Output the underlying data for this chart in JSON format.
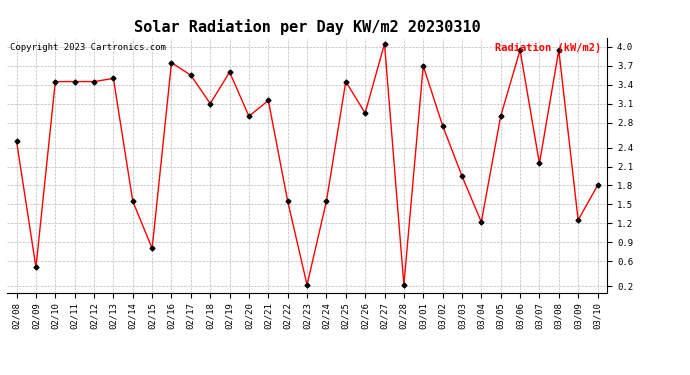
{
  "title": "Solar Radiation per Day KW/m2 20230310",
  "copyright": "Copyright 2023 Cartronics.com",
  "legend_label": "Radiation (kW/m2)",
  "dates": [
    "02/08",
    "02/09",
    "02/10",
    "02/11",
    "02/12",
    "02/13",
    "02/14",
    "02/15",
    "02/16",
    "02/17",
    "02/18",
    "02/19",
    "02/20",
    "02/21",
    "02/22",
    "02/23",
    "02/24",
    "02/25",
    "02/26",
    "02/27",
    "02/28",
    "03/01",
    "03/02",
    "03/03",
    "03/04",
    "03/05",
    "03/06",
    "03/07",
    "03/08",
    "03/09",
    "03/10"
  ],
  "values": [
    2.5,
    0.5,
    3.45,
    3.45,
    3.45,
    3.5,
    1.55,
    0.8,
    3.75,
    3.55,
    3.1,
    3.6,
    2.9,
    3.15,
    1.55,
    0.22,
    1.55,
    3.45,
    2.95,
    4.05,
    0.22,
    3.7,
    2.75,
    1.95,
    1.22,
    2.9,
    3.95,
    2.15,
    3.95,
    1.25,
    1.8
  ],
  "line_color": "red",
  "marker_color": "black",
  "marker_size": 2.5,
  "line_width": 1.0,
  "grid_color": "#bbbbbb",
  "bg_color": "white",
  "ylim": [
    0.1,
    4.15
  ],
  "yticks": [
    0.2,
    0.6,
    0.9,
    1.2,
    1.5,
    1.8,
    2.1,
    2.4,
    2.8,
    3.1,
    3.4,
    3.7,
    4.0
  ],
  "title_fontsize": 11,
  "copyright_fontsize": 6.5,
  "legend_fontsize": 7.5,
  "tick_fontsize": 6.5
}
